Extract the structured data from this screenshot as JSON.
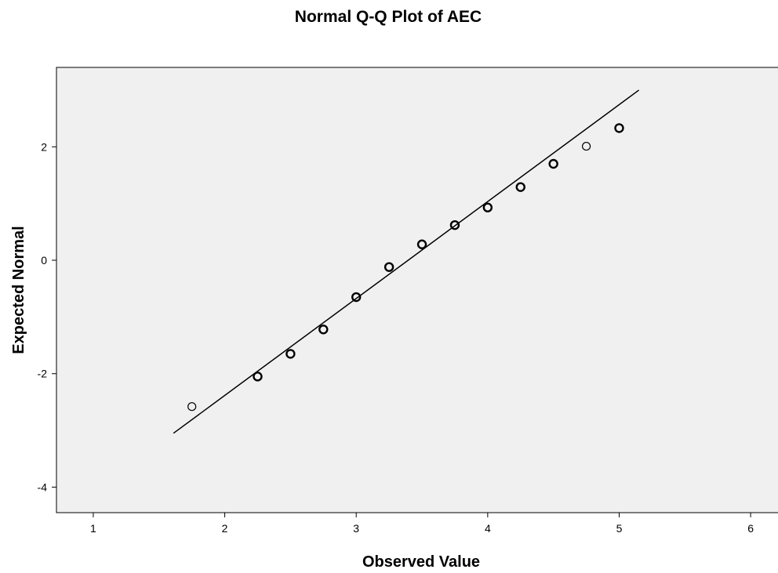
{
  "chart_data": {
    "type": "scatter",
    "title": "Normal Q-Q Plot of AEC",
    "xlabel": "Observed Value",
    "ylabel": "Expected Normal",
    "xlim": [
      0.72,
      6.22
    ],
    "ylim": [
      -4.45,
      3.4
    ],
    "xticks": [
      1,
      2,
      3,
      4,
      5,
      6
    ],
    "xtick_labels": [
      "1",
      "2",
      "3",
      "4",
      "5",
      "6"
    ],
    "yticks": [
      -4,
      -2,
      0,
      2
    ],
    "ytick_labels": [
      "-4",
      "-2",
      "0",
      "2"
    ],
    "grid": false,
    "legend": "none",
    "points": [
      {
        "x": 1.75,
        "y": -2.58,
        "bold": false
      },
      {
        "x": 2.25,
        "y": -2.05,
        "bold": true
      },
      {
        "x": 2.5,
        "y": -1.65,
        "bold": true
      },
      {
        "x": 2.75,
        "y": -1.22,
        "bold": true
      },
      {
        "x": 3.0,
        "y": -0.65,
        "bold": true
      },
      {
        "x": 3.25,
        "y": -0.12,
        "bold": true
      },
      {
        "x": 3.5,
        "y": 0.28,
        "bold": true
      },
      {
        "x": 3.75,
        "y": 0.62,
        "bold": true
      },
      {
        "x": 4.0,
        "y": 0.93,
        "bold": true
      },
      {
        "x": 4.25,
        "y": 1.29,
        "bold": true
      },
      {
        "x": 4.5,
        "y": 1.7,
        "bold": true
      },
      {
        "x": 4.75,
        "y": 2.01,
        "bold": false
      },
      {
        "x": 5.0,
        "y": 2.33,
        "bold": true
      }
    ],
    "reference_line": {
      "x": [
        1.61,
        5.15
      ],
      "y": [
        -3.05,
        3.0
      ]
    },
    "colors": {
      "plot_background": "#f0f0f0",
      "frame": "#000000",
      "marker": "#000000",
      "line": "#000000"
    }
  }
}
